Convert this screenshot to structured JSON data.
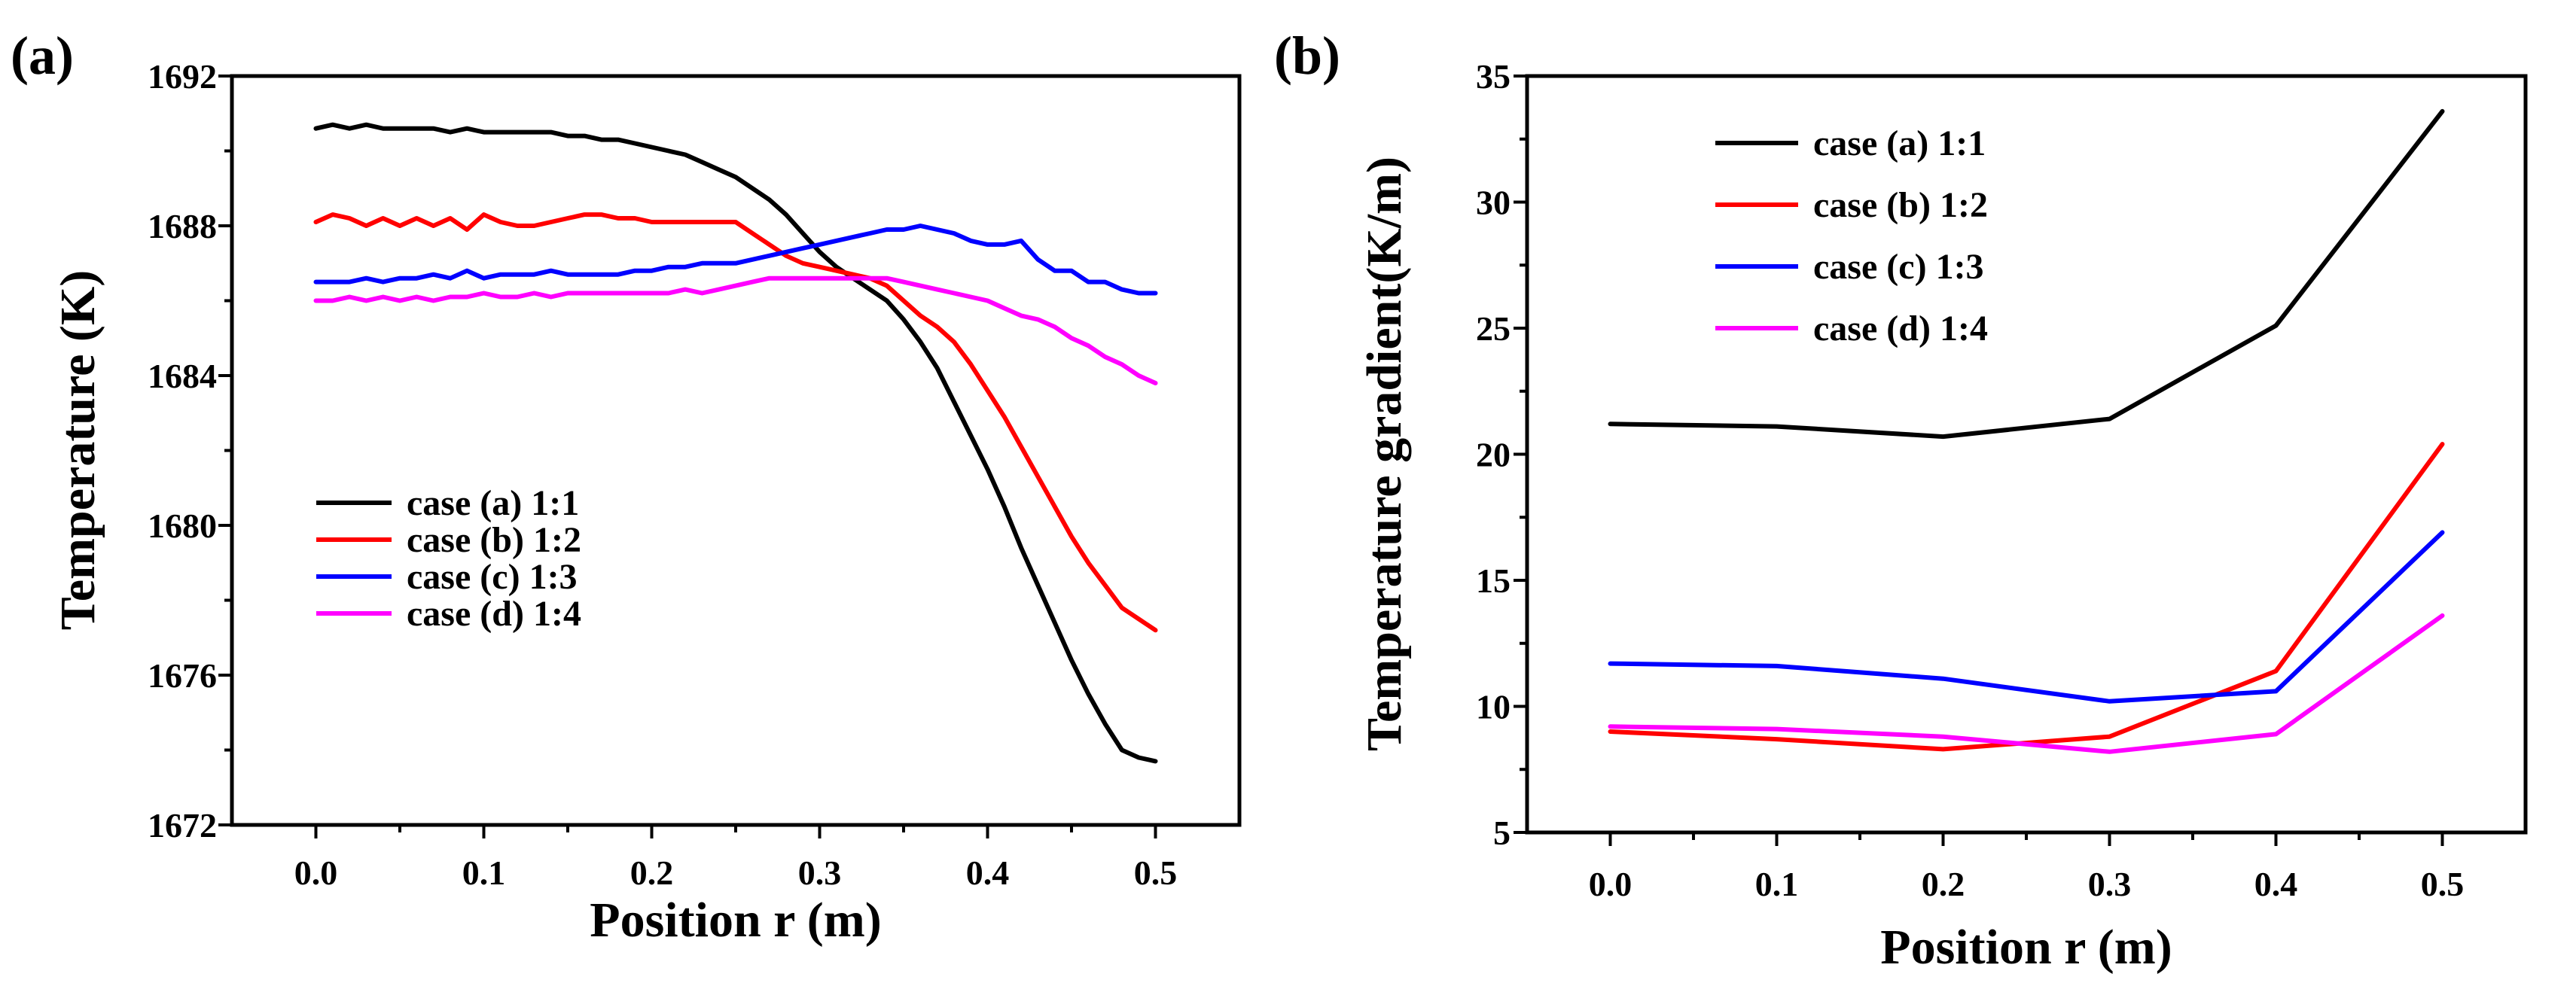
{
  "colors": {
    "case_a": "#000000",
    "case_b": "#ff0000",
    "case_c": "#0000ff",
    "case_d": "#ff00ff"
  },
  "chart_data": [
    {
      "panel_label": "(a)",
      "type": "line",
      "xlabel": "Position r (m)",
      "ylabel": "Temperature (K)",
      "xlim": [
        -0.05,
        0.55
      ],
      "ylim": [
        1672,
        1692
      ],
      "xticks": [
        0.0,
        0.1,
        0.2,
        0.3,
        0.4,
        0.5
      ],
      "xtick_labels": [
        "0.0",
        "0.1",
        "0.2",
        "0.3",
        "0.4",
        "0.5"
      ],
      "yticks": [
        1672,
        1676,
        1680,
        1684,
        1688,
        1692
      ],
      "ytick_labels": [
        "1672",
        "1676",
        "1680",
        "1684",
        "1688",
        "1692"
      ],
      "legend_position": "lower-left",
      "series": [
        {
          "name": "case (a) 1:1",
          "color_key": "case_a",
          "x": [
            0.0,
            0.01,
            0.02,
            0.03,
            0.04,
            0.05,
            0.06,
            0.07,
            0.08,
            0.09,
            0.1,
            0.11,
            0.12,
            0.13,
            0.14,
            0.15,
            0.16,
            0.17,
            0.18,
            0.19,
            0.2,
            0.21,
            0.22,
            0.23,
            0.24,
            0.25,
            0.26,
            0.27,
            0.28,
            0.29,
            0.3,
            0.31,
            0.32,
            0.33,
            0.34,
            0.35,
            0.36,
            0.37,
            0.38,
            0.39,
            0.4,
            0.41,
            0.42,
            0.43,
            0.44,
            0.45,
            0.46,
            0.47,
            0.48,
            0.49,
            0.5
          ],
          "values": [
            1690.6,
            1690.7,
            1690.6,
            1690.7,
            1690.6,
            1690.6,
            1690.6,
            1690.6,
            1690.5,
            1690.6,
            1690.5,
            1690.5,
            1690.5,
            1690.5,
            1690.5,
            1690.4,
            1690.4,
            1690.3,
            1690.3,
            1690.2,
            1690.1,
            1690.0,
            1689.9,
            1689.7,
            1689.5,
            1689.3,
            1689.0,
            1688.7,
            1688.3,
            1687.8,
            1687.3,
            1686.9,
            1686.6,
            1686.3,
            1686.0,
            1685.5,
            1684.9,
            1684.2,
            1683.3,
            1682.4,
            1681.5,
            1680.5,
            1679.4,
            1678.4,
            1677.4,
            1676.4,
            1675.5,
            1674.7,
            1674.0,
            1673.8,
            1673.7
          ]
        },
        {
          "name": "case (b) 1:2",
          "color_key": "case_b",
          "x": [
            0.0,
            0.01,
            0.02,
            0.03,
            0.04,
            0.05,
            0.06,
            0.07,
            0.08,
            0.09,
            0.1,
            0.11,
            0.12,
            0.13,
            0.14,
            0.15,
            0.16,
            0.17,
            0.18,
            0.19,
            0.2,
            0.21,
            0.22,
            0.23,
            0.24,
            0.25,
            0.26,
            0.27,
            0.28,
            0.29,
            0.3,
            0.31,
            0.32,
            0.33,
            0.34,
            0.35,
            0.36,
            0.37,
            0.38,
            0.39,
            0.4,
            0.41,
            0.42,
            0.43,
            0.44,
            0.45,
            0.46,
            0.47,
            0.48,
            0.49,
            0.5
          ],
          "values": [
            1688.1,
            1688.3,
            1688.2,
            1688.0,
            1688.2,
            1688.0,
            1688.2,
            1688.0,
            1688.2,
            1687.9,
            1688.3,
            1688.1,
            1688.0,
            1688.0,
            1688.1,
            1688.2,
            1688.3,
            1688.3,
            1688.2,
            1688.2,
            1688.1,
            1688.1,
            1688.1,
            1688.1,
            1688.1,
            1688.1,
            1687.8,
            1687.5,
            1687.2,
            1687.0,
            1686.9,
            1686.8,
            1686.7,
            1686.6,
            1686.4,
            1686.0,
            1685.6,
            1685.3,
            1684.9,
            1684.3,
            1683.6,
            1682.9,
            1682.1,
            1681.3,
            1680.5,
            1679.7,
            1679.0,
            1678.4,
            1677.8,
            1677.5,
            1677.2
          ]
        },
        {
          "name": "case (c) 1:3",
          "color_key": "case_c",
          "x": [
            0.0,
            0.01,
            0.02,
            0.03,
            0.04,
            0.05,
            0.06,
            0.07,
            0.08,
            0.09,
            0.1,
            0.11,
            0.12,
            0.13,
            0.14,
            0.15,
            0.16,
            0.17,
            0.18,
            0.19,
            0.2,
            0.21,
            0.22,
            0.23,
            0.24,
            0.25,
            0.26,
            0.27,
            0.28,
            0.29,
            0.3,
            0.31,
            0.32,
            0.33,
            0.34,
            0.35,
            0.36,
            0.37,
            0.38,
            0.39,
            0.4,
            0.41,
            0.42,
            0.43,
            0.44,
            0.45,
            0.46,
            0.47,
            0.48,
            0.49,
            0.5
          ],
          "values": [
            1686.5,
            1686.5,
            1686.5,
            1686.6,
            1686.5,
            1686.6,
            1686.6,
            1686.7,
            1686.6,
            1686.8,
            1686.6,
            1686.7,
            1686.7,
            1686.7,
            1686.8,
            1686.7,
            1686.7,
            1686.7,
            1686.7,
            1686.8,
            1686.8,
            1686.9,
            1686.9,
            1687.0,
            1687.0,
            1687.0,
            1687.1,
            1687.2,
            1687.3,
            1687.4,
            1687.5,
            1687.6,
            1687.7,
            1687.8,
            1687.9,
            1687.9,
            1688.0,
            1687.9,
            1687.8,
            1687.6,
            1687.5,
            1687.5,
            1687.6,
            1687.1,
            1686.8,
            1686.8,
            1686.5,
            1686.5,
            1686.3,
            1686.2,
            1686.2
          ]
        },
        {
          "name": "case (d) 1:4",
          "color_key": "case_d",
          "x": [
            0.0,
            0.01,
            0.02,
            0.03,
            0.04,
            0.05,
            0.06,
            0.07,
            0.08,
            0.09,
            0.1,
            0.11,
            0.12,
            0.13,
            0.14,
            0.15,
            0.16,
            0.17,
            0.18,
            0.19,
            0.2,
            0.21,
            0.22,
            0.23,
            0.24,
            0.25,
            0.26,
            0.27,
            0.28,
            0.29,
            0.3,
            0.31,
            0.32,
            0.33,
            0.34,
            0.35,
            0.36,
            0.37,
            0.38,
            0.39,
            0.4,
            0.41,
            0.42,
            0.43,
            0.44,
            0.45,
            0.46,
            0.47,
            0.48,
            0.49,
            0.5
          ],
          "values": [
            1686.0,
            1686.0,
            1686.1,
            1686.0,
            1686.1,
            1686.0,
            1686.1,
            1686.0,
            1686.1,
            1686.1,
            1686.2,
            1686.1,
            1686.1,
            1686.2,
            1686.1,
            1686.2,
            1686.2,
            1686.2,
            1686.2,
            1686.2,
            1686.2,
            1686.2,
            1686.3,
            1686.2,
            1686.3,
            1686.4,
            1686.5,
            1686.6,
            1686.6,
            1686.6,
            1686.6,
            1686.6,
            1686.6,
            1686.6,
            1686.6,
            1686.5,
            1686.4,
            1686.3,
            1686.2,
            1686.1,
            1686.0,
            1685.8,
            1685.6,
            1685.5,
            1685.3,
            1685.0,
            1684.8,
            1684.5,
            1684.3,
            1684.0,
            1683.8
          ]
        }
      ]
    },
    {
      "panel_label": "(b)",
      "type": "line",
      "xlabel": "Position r (m)",
      "ylabel": "Temperature gradient(K/m)",
      "xlim": [
        -0.05,
        0.55
      ],
      "ylim": [
        5,
        35
      ],
      "xticks": [
        0.0,
        0.1,
        0.2,
        0.3,
        0.4,
        0.5
      ],
      "xtick_labels": [
        "0.0",
        "0.1",
        "0.2",
        "0.3",
        "0.4",
        "0.5"
      ],
      "yticks": [
        5,
        10,
        15,
        20,
        25,
        30,
        35
      ],
      "ytick_labels": [
        "5",
        "10",
        "15",
        "20",
        "25",
        "30",
        "35"
      ],
      "legend_position": "top-left",
      "series": [
        {
          "name": "case (a) 1:1",
          "color_key": "case_a",
          "x": [
            0.0,
            0.1,
            0.2,
            0.3,
            0.4,
            0.5
          ],
          "values": [
            21.2,
            21.1,
            20.7,
            21.4,
            25.1,
            33.6
          ]
        },
        {
          "name": "case (b) 1:2",
          "color_key": "case_b",
          "x": [
            0.0,
            0.1,
            0.2,
            0.3,
            0.4,
            0.5
          ],
          "values": [
            9.0,
            8.7,
            8.3,
            8.8,
            11.4,
            20.4
          ]
        },
        {
          "name": "case (c) 1:3",
          "color_key": "case_c",
          "x": [
            0.0,
            0.1,
            0.2,
            0.3,
            0.4,
            0.5
          ],
          "values": [
            11.7,
            11.6,
            11.1,
            10.2,
            10.6,
            16.9
          ]
        },
        {
          "name": "case (d) 1:4",
          "color_key": "case_d",
          "x": [
            0.0,
            0.1,
            0.2,
            0.3,
            0.4,
            0.5
          ],
          "values": [
            9.2,
            9.1,
            8.8,
            8.2,
            8.9,
            13.6
          ]
        }
      ]
    }
  ]
}
